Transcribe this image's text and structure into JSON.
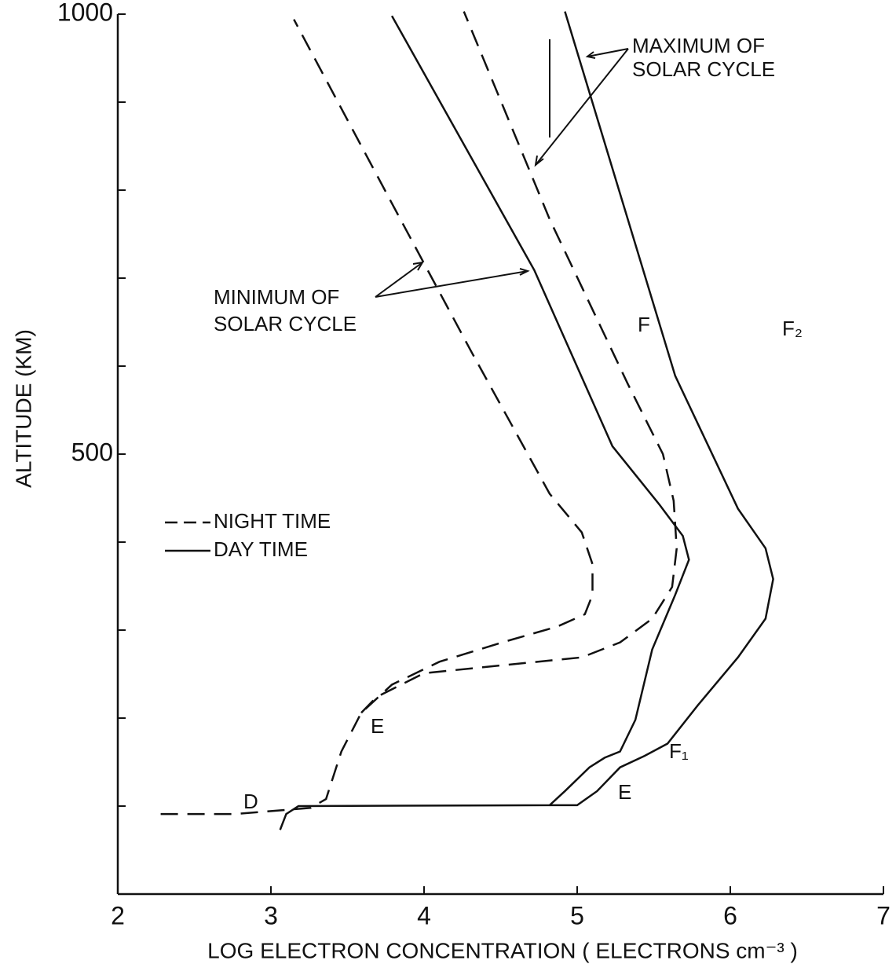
{
  "chart_data": {
    "type": "line",
    "xlabel": "LOG ELECTRON CONCENTRATION ( ELECTRONS cm⁻³ )",
    "ylabel": "ALTITUDE (KM)",
    "xlim": [
      2,
      7
    ],
    "xticks": [
      2,
      3,
      4,
      5,
      6,
      7
    ],
    "ylim": [
      0,
      1000
    ],
    "yticks": [
      500,
      1000
    ],
    "y_minor_ticks": [
      100,
      200,
      300,
      400,
      600,
      700,
      800,
      900
    ],
    "color": "#111111",
    "legend": [
      {
        "label": "NIGHT TIME",
        "dashed": true
      },
      {
        "label": "DAY TIME",
        "dashed": false
      }
    ],
    "series": [
      {
        "dashed": true,
        "x": [
          2.28,
          2.77,
          3.26,
          3.36,
          3.46,
          3.59,
          3.79,
          4.1,
          4.51,
          4.87,
          5.05,
          5.1,
          5.1,
          5.03,
          4.82,
          4.31,
          3.79,
          3.15
        ],
        "values": [
          91,
          91,
          98,
          108,
          162,
          206,
          238,
          264,
          286,
          304,
          318,
          340,
          375,
          411,
          455,
          616,
          785,
          994
        ]
      },
      {
        "dashed": false,
        "x": [
          3.06,
          3.1,
          3.18,
          4.82,
          4.92,
          5.08,
          5.18,
          5.28,
          5.38,
          5.49,
          5.64,
          5.73,
          5.69,
          5.54,
          5.23,
          4.72,
          3.79
        ],
        "values": [
          73,
          91,
          100,
          101,
          117,
          144,
          155,
          162,
          198,
          278,
          340,
          380,
          407,
          442,
          509,
          709,
          998
        ]
      },
      {
        "dashed": true,
        "x": [
          3.59,
          3.69,
          4.0,
          4.51,
          5.03,
          5.28,
          5.49,
          5.62,
          5.65,
          5.63,
          5.56,
          5.33,
          4.82,
          4.26
        ],
        "values": [
          206,
          224,
          251,
          260,
          269,
          286,
          313,
          349,
          393,
          447,
          500,
          580,
          767,
          1003
        ]
      },
      {
        "dashed": false,
        "x": [
          4.82,
          5.0,
          5.13,
          5.28,
          5.44,
          5.59,
          5.79,
          6.05,
          6.23,
          6.28,
          6.23,
          6.05,
          5.64,
          4.92
        ],
        "values": [
          101,
          101,
          117,
          144,
          157,
          171,
          215,
          269,
          313,
          358,
          393,
          438,
          589,
          1003
        ]
      }
    ],
    "layer_labels": [
      "D",
      "E",
      "F",
      "E",
      "F₁",
      "F₂"
    ],
    "annotations": [
      "MAXIMUM OF",
      "SOLAR CYCLE",
      "MINIMUM OF",
      "SOLAR CYCLE"
    ]
  }
}
